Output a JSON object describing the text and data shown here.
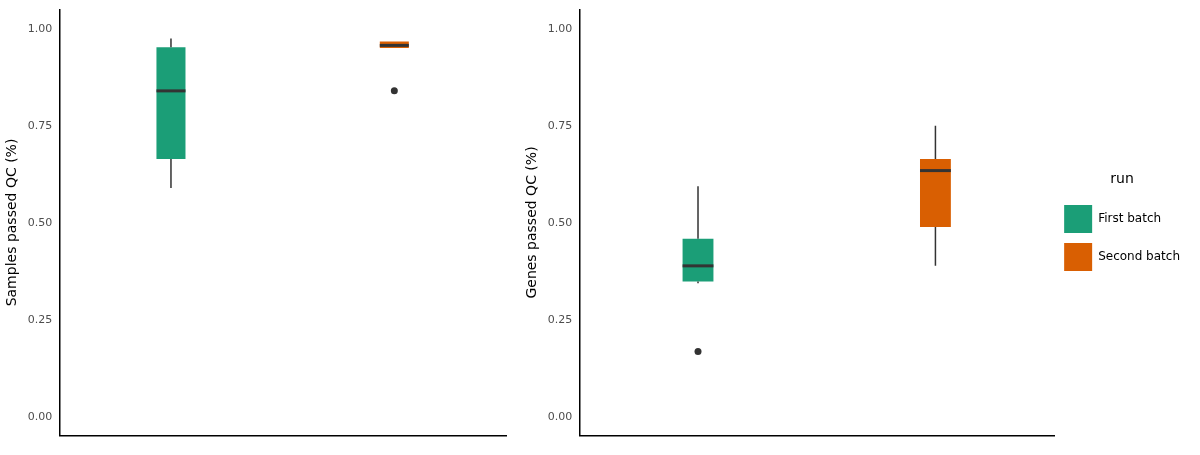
{
  "chart_data": [
    {
      "type": "box",
      "ylabel": "Samples passed QC (%)",
      "categories": [
        null,
        null
      ],
      "ylim": [
        -0.046,
        1.049
      ],
      "yticks": [
        {
          "value": 0,
          "label": "0.00"
        },
        {
          "value": 0.25,
          "label": "0.25"
        },
        {
          "value": 0.5,
          "label": "0.50"
        },
        {
          "value": 0.75,
          "label": "0.75"
        },
        {
          "value": 1,
          "label": "1.00"
        }
      ],
      "tick_labels": "y",
      "grid": false,
      "legend": false,
      "series": [
        {
          "color": "#1b9e77",
          "boxes": [
            {
              "low": 0.59,
              "q1": 0.665,
              "median": 0.84,
              "q3": 0.952,
              "high": 0.975
            },
            null
          ]
        },
        {
          "color": "#d95f02",
          "boxes": [
            null,
            {
              "low": 0.95,
              "q1": 0.95,
              "median": 0.957,
              "q3": 0.967,
              "high": 0.967,
              "outliers": [
                0.84
              ]
            }
          ]
        }
      ]
    },
    {
      "type": "box",
      "ylabel": "Genes passed QC (%)",
      "categories": [
        null,
        null
      ],
      "ylim": [
        -0.046,
        1.049
      ],
      "yticks": [
        {
          "value": 0,
          "label": "0.00"
        },
        {
          "value": 0.25,
          "label": "0.25"
        },
        {
          "value": 0.5,
          "label": "0.50"
        },
        {
          "value": 0.75,
          "label": "0.75"
        },
        {
          "value": 1,
          "label": "1.00"
        }
      ],
      "tick_labels": "y",
      "grid": false,
      "legend": "right",
      "legend_title": "run",
      "series": [
        {
          "name": "First batch",
          "color": "#1b9e77",
          "boxes": [
            {
              "low": 0.345,
              "q1": 0.35,
              "median": 0.39,
              "q3": 0.46,
              "high": 0.595,
              "outliers": [
                0.17
              ]
            },
            null
          ]
        },
        {
          "name": "Second batch",
          "color": "#d95f02",
          "boxes": [
            null,
            {
              "low": 0.39,
              "q1": 0.49,
              "median": 0.635,
              "q3": 0.665,
              "high": 0.75
            }
          ]
        }
      ]
    }
  ]
}
